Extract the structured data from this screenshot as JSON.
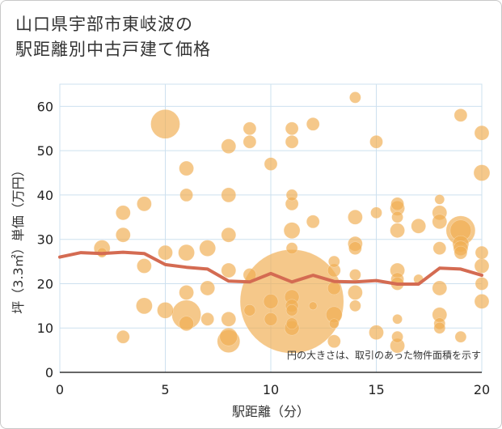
{
  "title": {
    "line1": "山口県宇部市東岐波の",
    "line2": "駅距離別中古戸建て価格"
  },
  "colors": {
    "bubble_fill": "#f0ae52",
    "line": "#d46b52",
    "grid": "#cde0ef",
    "axis": "#333333"
  },
  "chart_data": {
    "type": "scatter",
    "title": "山口県宇部市東岐波の駅距離別中古戸建て価格",
    "xlabel": "駅距離（分）",
    "ylabel": "坪（3.3㎡）単価（万円）",
    "xlim": [
      0,
      20
    ],
    "ylim": [
      0,
      65
    ],
    "xticks": [
      "0",
      "5",
      "10",
      "15",
      "20"
    ],
    "yticks": [
      "0",
      "10",
      "20",
      "30",
      "40",
      "50",
      "60"
    ],
    "grid": true,
    "note": "円の大きさは、取引のあった物件面積を示す",
    "points": [
      {
        "x": 2,
        "y": 28,
        "s": 10
      },
      {
        "x": 2,
        "y": 27,
        "s": 6
      },
      {
        "x": 3,
        "y": 36,
        "s": 9
      },
      {
        "x": 3,
        "y": 31,
        "s": 9
      },
      {
        "x": 3,
        "y": 8,
        "s": 8
      },
      {
        "x": 4,
        "y": 38,
        "s": 9
      },
      {
        "x": 4,
        "y": 24,
        "s": 9
      },
      {
        "x": 4,
        "y": 15,
        "s": 10
      },
      {
        "x": 5,
        "y": 56,
        "s": 18
      },
      {
        "x": 5,
        "y": 27,
        "s": 9
      },
      {
        "x": 5,
        "y": 14,
        "s": 10
      },
      {
        "x": 6,
        "y": 46,
        "s": 9
      },
      {
        "x": 6,
        "y": 40,
        "s": 8
      },
      {
        "x": 6,
        "y": 27,
        "s": 10
      },
      {
        "x": 6,
        "y": 18,
        "s": 9
      },
      {
        "x": 6,
        "y": 13,
        "s": 18
      },
      {
        "x": 6,
        "y": 11,
        "s": 9
      },
      {
        "x": 7,
        "y": 28,
        "s": 10
      },
      {
        "x": 7,
        "y": 19,
        "s": 9
      },
      {
        "x": 7,
        "y": 12,
        "s": 8
      },
      {
        "x": 8,
        "y": 51,
        "s": 9
      },
      {
        "x": 8,
        "y": 40,
        "s": 9
      },
      {
        "x": 8,
        "y": 31,
        "s": 9
      },
      {
        "x": 8,
        "y": 23,
        "s": 9
      },
      {
        "x": 8,
        "y": 12,
        "s": 9
      },
      {
        "x": 8,
        "y": 8,
        "s": 11
      },
      {
        "x": 8,
        "y": 7,
        "s": 14
      },
      {
        "x": 9,
        "y": 55,
        "s": 8
      },
      {
        "x": 9,
        "y": 52,
        "s": 8
      },
      {
        "x": 9,
        "y": 22,
        "s": 8
      },
      {
        "x": 9,
        "y": 14,
        "s": 7
      },
      {
        "x": 10,
        "y": 47,
        "s": 8
      },
      {
        "x": 10,
        "y": 16,
        "s": 9
      },
      {
        "x": 10,
        "y": 12,
        "s": 8
      },
      {
        "x": 11,
        "y": 55,
        "s": 8
      },
      {
        "x": 11,
        "y": 52,
        "s": 8
      },
      {
        "x": 11,
        "y": 40,
        "s": 7
      },
      {
        "x": 11,
        "y": 38,
        "s": 8
      },
      {
        "x": 11,
        "y": 32,
        "s": 10
      },
      {
        "x": 11,
        "y": 28,
        "s": 7
      },
      {
        "x": 11,
        "y": 17,
        "s": 9
      },
      {
        "x": 11,
        "y": 15,
        "s": 8
      },
      {
        "x": 11,
        "y": 14,
        "s": 7
      },
      {
        "x": 11,
        "y": 11,
        "s": 7
      },
      {
        "x": 11,
        "y": 10,
        "s": 9
      },
      {
        "x": 11,
        "y": 16,
        "s": 64
      },
      {
        "x": 12,
        "y": 56,
        "s": 8
      },
      {
        "x": 12,
        "y": 34,
        "s": 8
      },
      {
        "x": 12,
        "y": 15,
        "s": 5
      },
      {
        "x": 13,
        "y": 25,
        "s": 7
      },
      {
        "x": 13,
        "y": 23,
        "s": 8
      },
      {
        "x": 13,
        "y": 19,
        "s": 8
      },
      {
        "x": 13,
        "y": 13,
        "s": 10
      },
      {
        "x": 13,
        "y": 11,
        "s": 6
      },
      {
        "x": 13,
        "y": 7,
        "s": 8
      },
      {
        "x": 14,
        "y": 62,
        "s": 7
      },
      {
        "x": 14,
        "y": 35,
        "s": 9
      },
      {
        "x": 14,
        "y": 29,
        "s": 9
      },
      {
        "x": 14,
        "y": 28,
        "s": 8
      },
      {
        "x": 14,
        "y": 22,
        "s": 7
      },
      {
        "x": 14,
        "y": 18,
        "s": 9
      },
      {
        "x": 14,
        "y": 15,
        "s": 7
      },
      {
        "x": 15,
        "y": 52,
        "s": 8
      },
      {
        "x": 15,
        "y": 36,
        "s": 7
      },
      {
        "x": 15,
        "y": 9,
        "s": 9
      },
      {
        "x": 16,
        "y": 38,
        "s": 8
      },
      {
        "x": 16,
        "y": 37,
        "s": 9
      },
      {
        "x": 16,
        "y": 35,
        "s": 7
      },
      {
        "x": 16,
        "y": 32,
        "s": 9
      },
      {
        "x": 16,
        "y": 23,
        "s": 9
      },
      {
        "x": 16,
        "y": 21,
        "s": 8
      },
      {
        "x": 16,
        "y": 20,
        "s": 8
      },
      {
        "x": 16,
        "y": 12,
        "s": 6
      },
      {
        "x": 16,
        "y": 8,
        "s": 7
      },
      {
        "x": 16,
        "y": 6,
        "s": 9
      },
      {
        "x": 17,
        "y": 33,
        "s": 9
      },
      {
        "x": 17,
        "y": 21,
        "s": 6
      },
      {
        "x": 18,
        "y": 39,
        "s": 6
      },
      {
        "x": 18,
        "y": 36,
        "s": 9
      },
      {
        "x": 18,
        "y": 34,
        "s": 9
      },
      {
        "x": 18,
        "y": 28,
        "s": 8
      },
      {
        "x": 18,
        "y": 19,
        "s": 9
      },
      {
        "x": 18,
        "y": 13,
        "s": 9
      },
      {
        "x": 18,
        "y": 11,
        "s": 7
      },
      {
        "x": 18,
        "y": 10,
        "s": 7
      },
      {
        "x": 19,
        "y": 58,
        "s": 8
      },
      {
        "x": 19,
        "y": 32,
        "s": 18
      },
      {
        "x": 19,
        "y": 32,
        "s": 13
      },
      {
        "x": 19,
        "y": 29,
        "s": 10
      },
      {
        "x": 19,
        "y": 28,
        "s": 9
      },
      {
        "x": 19,
        "y": 27,
        "s": 8
      },
      {
        "x": 19,
        "y": 8,
        "s": 7
      },
      {
        "x": 20,
        "y": 54,
        "s": 9
      },
      {
        "x": 20,
        "y": 45,
        "s": 10
      },
      {
        "x": 20,
        "y": 27,
        "s": 8
      },
      {
        "x": 20,
        "y": 24,
        "s": 9
      },
      {
        "x": 20,
        "y": 20,
        "s": 8
      },
      {
        "x": 20,
        "y": 16,
        "s": 9
      }
    ],
    "series": [
      {
        "name": "average",
        "x": [
          0,
          1,
          2,
          3,
          4,
          5,
          6,
          7,
          8,
          9,
          10,
          11,
          12,
          13,
          14,
          15,
          16,
          17,
          18,
          19,
          20
        ],
        "values": [
          26.0,
          27.0,
          26.8,
          27.1,
          26.8,
          24.3,
          23.7,
          23.3,
          20.6,
          20.4,
          22.3,
          20.4,
          21.9,
          20.5,
          20.4,
          20.7,
          19.9,
          19.9,
          23.5,
          23.3,
          21.9
        ]
      }
    ]
  }
}
